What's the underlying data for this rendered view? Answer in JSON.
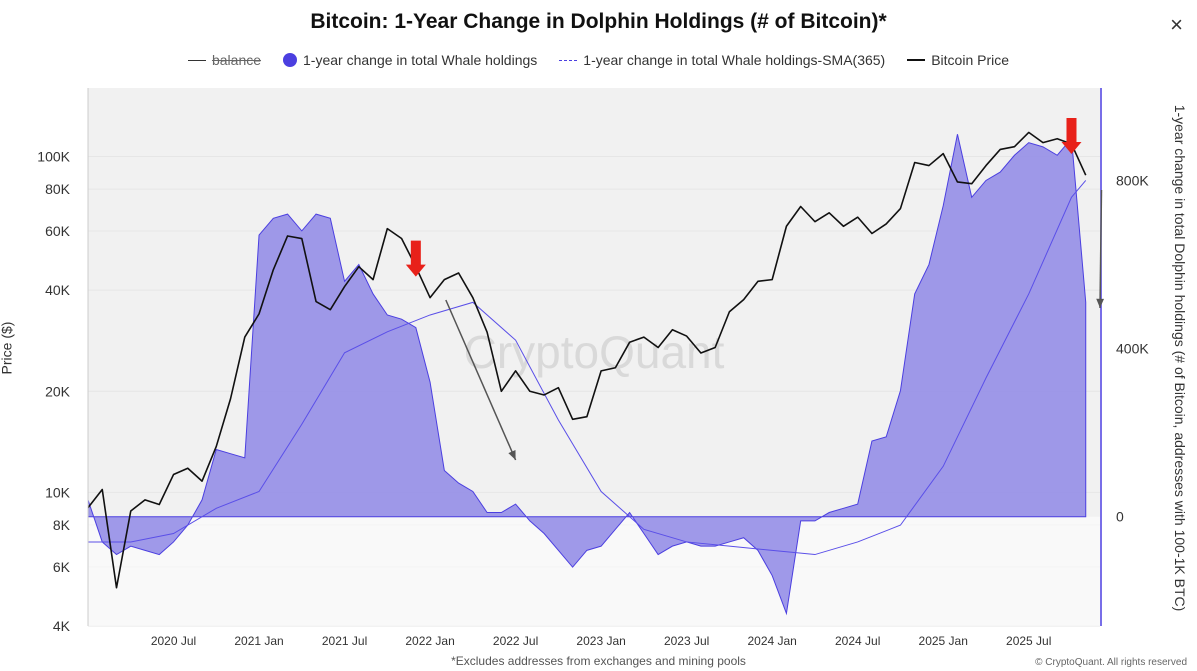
{
  "header": {
    "title": "Bitcoin: 1-Year Change in Dolphin Holdings (# of Bitcoin)*",
    "close_symbol": "×"
  },
  "legend": [
    {
      "label": "balance",
      "style": "line",
      "enabled": false
    },
    {
      "label": "1-year change in total Whale holdings",
      "style": "dot",
      "enabled": true
    },
    {
      "label": "1-year change in total Whale holdings-SMA(365)",
      "style": "dash",
      "enabled": true
    },
    {
      "label": "Bitcoin Price",
      "style": "black-line",
      "enabled": true
    }
  ],
  "watermark": "CryptoQuant",
  "footnote": "*Excludes addresses from exchanges and mining pools",
  "copyright": "© CryptoQuant. All rights reserved",
  "colors": {
    "area_fill": "#8f88e6",
    "area_stroke": "#4b3fe0",
    "sma": "#5a4fe8",
    "price": "#111111",
    "arrow_red": "#e8211a",
    "arrow_gray": "#555555"
  },
  "chart_data": {
    "type": "area",
    "title": "Bitcoin: 1-Year Change in Dolphin Holdings (# of Bitcoin)*",
    "xlabel": "",
    "ylabel_left": "Price ($)",
    "ylabel_right": "1-year change in total Dolphin holdings (# of Bitcoin, addresses with 100-1K BTC)",
    "x_range": [
      "2020-01",
      "2025-12"
    ],
    "x_ticks": [
      "2020 Jul",
      "2021 Jan",
      "2021 Jul",
      "2022 Jan",
      "2022 Jul",
      "2023 Jan",
      "2023 Jul",
      "2024 Jan",
      "2024 Jul",
      "2025 Jan",
      "2025 Jul"
    ],
    "y_left": {
      "scale": "log",
      "range": [
        4000,
        160000
      ],
      "ticks": [
        4000,
        6000,
        8000,
        10000,
        20000,
        40000,
        60000,
        80000,
        100000
      ],
      "tick_labels": [
        "4K",
        "6K",
        "8K",
        "10K",
        "20K",
        "40K",
        "60K",
        "80K",
        "100K"
      ]
    },
    "y_right": {
      "scale": "linear",
      "range": [
        -260000,
        1020000
      ],
      "ticks": [
        0,
        400000,
        800000
      ],
      "tick_labels": [
        "0",
        "400K",
        "800K"
      ]
    },
    "grid": true,
    "legend_position": "top",
    "series": [
      {
        "name": "1-year change in total Whale holdings",
        "axis": "right",
        "kind": "area",
        "x": [
          "2020-01",
          "2020-02",
          "2020-03",
          "2020-04",
          "2020-05",
          "2020-06",
          "2020-07",
          "2020-08",
          "2020-09",
          "2020-10",
          "2020-11",
          "2020-12",
          "2021-01",
          "2021-02",
          "2021-03",
          "2021-04",
          "2021-05",
          "2021-06",
          "2021-07",
          "2021-08",
          "2021-09",
          "2021-10",
          "2021-11",
          "2021-12",
          "2022-01",
          "2022-02",
          "2022-03",
          "2022-04",
          "2022-05",
          "2022-06",
          "2022-07",
          "2022-08",
          "2022-09",
          "2022-10",
          "2022-11",
          "2022-12",
          "2023-01",
          "2023-02",
          "2023-03",
          "2023-04",
          "2023-05",
          "2023-06",
          "2023-07",
          "2023-08",
          "2023-09",
          "2023-10",
          "2023-11",
          "2023-12",
          "2024-01",
          "2024-02",
          "2024-03",
          "2024-04",
          "2024-05",
          "2024-06",
          "2024-07",
          "2024-08",
          "2024-09",
          "2024-10",
          "2024-11",
          "2024-12",
          "2025-01",
          "2025-02",
          "2025-03",
          "2025-04",
          "2025-05",
          "2025-06",
          "2025-07",
          "2025-08",
          "2025-09",
          "2025-10",
          "2025-11"
        ],
        "values": [
          40000,
          -60000,
          -90000,
          -70000,
          -80000,
          -90000,
          -60000,
          -20000,
          40000,
          160000,
          150000,
          140000,
          670000,
          710000,
          720000,
          680000,
          720000,
          710000,
          560000,
          600000,
          530000,
          480000,
          470000,
          450000,
          320000,
          110000,
          80000,
          60000,
          10000,
          10000,
          30000,
          -10000,
          -40000,
          -80000,
          -120000,
          -80000,
          -70000,
          -30000,
          10000,
          -40000,
          -90000,
          -70000,
          -60000,
          -70000,
          -70000,
          -60000,
          -50000,
          -80000,
          -140000,
          -230000,
          -10000,
          -10000,
          10000,
          20000,
          30000,
          180000,
          190000,
          300000,
          530000,
          600000,
          740000,
          910000,
          760000,
          800000,
          820000,
          860000,
          890000,
          880000,
          860000,
          900000,
          510000
        ]
      },
      {
        "name": "1-year change in total Whale holdings-SMA(365)",
        "axis": "right",
        "kind": "line",
        "x": [
          "2020-01",
          "2020-04",
          "2020-07",
          "2020-10",
          "2021-01",
          "2021-04",
          "2021-07",
          "2021-10",
          "2022-01",
          "2022-04",
          "2022-07",
          "2022-10",
          "2023-01",
          "2023-04",
          "2023-07",
          "2023-10",
          "2024-01",
          "2024-04",
          "2024-07",
          "2024-10",
          "2025-01",
          "2025-04",
          "2025-07",
          "2025-10",
          "2025-11"
        ],
        "values": [
          -60000,
          -60000,
          -40000,
          20000,
          60000,
          220000,
          390000,
          440000,
          480000,
          510000,
          420000,
          230000,
          60000,
          -30000,
          -60000,
          -70000,
          -80000,
          -90000,
          -60000,
          -20000,
          120000,
          330000,
          530000,
          760000,
          800000
        ]
      },
      {
        "name": "Bitcoin Price",
        "axis": "left",
        "kind": "line",
        "x": [
          "2020-01",
          "2020-02",
          "2020-03",
          "2020-04",
          "2020-05",
          "2020-06",
          "2020-07",
          "2020-08",
          "2020-09",
          "2020-10",
          "2020-11",
          "2020-12",
          "2021-01",
          "2021-02",
          "2021-03",
          "2021-04",
          "2021-05",
          "2021-06",
          "2021-07",
          "2021-08",
          "2021-09",
          "2021-10",
          "2021-11",
          "2021-12",
          "2022-01",
          "2022-02",
          "2022-03",
          "2022-04",
          "2022-05",
          "2022-06",
          "2022-07",
          "2022-08",
          "2022-09",
          "2022-10",
          "2022-11",
          "2022-12",
          "2023-01",
          "2023-02",
          "2023-03",
          "2023-04",
          "2023-05",
          "2023-06",
          "2023-07",
          "2023-08",
          "2023-09",
          "2023-10",
          "2023-11",
          "2023-12",
          "2024-01",
          "2024-02",
          "2024-03",
          "2024-04",
          "2024-05",
          "2024-06",
          "2024-07",
          "2024-08",
          "2024-09",
          "2024-10",
          "2024-11",
          "2024-12",
          "2025-01",
          "2025-02",
          "2025-03",
          "2025-04",
          "2025-05",
          "2025-06",
          "2025-07",
          "2025-08",
          "2025-09",
          "2025-10",
          "2025-11"
        ],
        "values": [
          9000,
          10200,
          5200,
          8800,
          9500,
          9200,
          11300,
          11800,
          10800,
          13700,
          19000,
          29000,
          34000,
          46000,
          58000,
          57000,
          37000,
          35000,
          41000,
          47000,
          43000,
          61000,
          57000,
          47000,
          38000,
          43000,
          45000,
          38000,
          30000,
          20000,
          23000,
          20000,
          19500,
          20500,
          16500,
          16800,
          23000,
          23500,
          28000,
          29000,
          27000,
          30500,
          29200,
          26000,
          27000,
          34500,
          37500,
          42500,
          43000,
          62000,
          71000,
          64000,
          68000,
          62000,
          66000,
          59000,
          63000,
          70000,
          96000,
          94000,
          102000,
          84000,
          83000,
          94000,
          105000,
          107000,
          118000,
          110000,
          113000,
          109000,
          88000
        ]
      }
    ],
    "annotations": [
      {
        "type": "red-arrow",
        "x": "2021-12",
        "direction": "down"
      },
      {
        "type": "red-arrow",
        "x": "2025-10",
        "direction": "down"
      },
      {
        "type": "gray-arrow",
        "from_x": "2021-12",
        "to_x": "2022-07",
        "direction": "down"
      },
      {
        "type": "gray-arrow",
        "from_x": "2025-10",
        "to_x": "2025-12",
        "direction": "down"
      }
    ]
  }
}
